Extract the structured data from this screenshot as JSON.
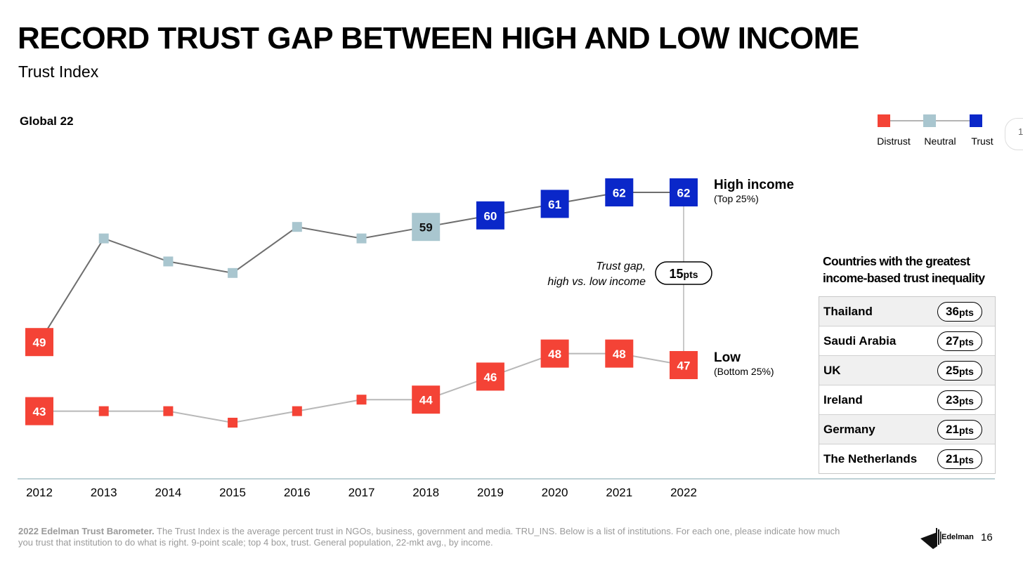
{
  "header": {
    "title": "RECORD TRUST GAP BETWEEN HIGH AND LOW INCOME",
    "subtitle": "Trust Index",
    "region": "Global 22"
  },
  "legend": {
    "items": [
      {
        "label": "Distrust",
        "color": "#f44336"
      },
      {
        "label": "Neutral",
        "color": "#a9c6cf"
      },
      {
        "label": "Trust",
        "color": "#0a27c9"
      }
    ]
  },
  "chart_data": {
    "type": "line",
    "x": [
      "2012",
      "2013",
      "2014",
      "2015",
      "2016",
      "2017",
      "2018",
      "2019",
      "2020",
      "2021",
      "2022"
    ],
    "series": [
      {
        "name": "High income",
        "subtitle": "(Top 25%)",
        "values": [
          49,
          58,
          56,
          55,
          59,
          58,
          59,
          60,
          61,
          62,
          62
        ],
        "labeled": [
          true,
          false,
          false,
          false,
          false,
          false,
          true,
          true,
          true,
          true,
          true
        ],
        "line_color": "#6e6e6e"
      },
      {
        "name": "Low",
        "subtitle": "(Bottom 25%)",
        "values": [
          43,
          43,
          43,
          42,
          43,
          44,
          44,
          46,
          48,
          48,
          47
        ],
        "labeled": [
          true,
          false,
          false,
          false,
          false,
          false,
          true,
          true,
          true,
          true,
          true
        ],
        "line_color": "#b8b8b8"
      }
    ],
    "category_colors": {
      "distrust": "#f44336",
      "neutral": "#a9c6cf",
      "trust": "#0a27c9"
    },
    "thresholds": {
      "distrust_max": 49,
      "trust_min": 60
    },
    "gap": {
      "label_line1": "Trust gap,",
      "label_line2": "high vs. low income",
      "value": "15",
      "unit": "pts"
    }
  },
  "countries": {
    "title_line1": "Countries with the greatest",
    "title_line2": "income-based trust inequality",
    "unit": "pts",
    "rows": [
      {
        "name": "Thailand",
        "value": "36"
      },
      {
        "name": "Saudi Arabia",
        "value": "27"
      },
      {
        "name": "UK",
        "value": "25"
      },
      {
        "name": "Ireland",
        "value": "23"
      },
      {
        "name": "Germany",
        "value": "21"
      },
      {
        "name": "The Netherlands",
        "value": "21"
      }
    ]
  },
  "footer": {
    "source_bold": "2022 Edelman Trust Barometer.",
    "source_text": " The Trust Index is the average percent trust in NGOs, business, government and media. TRU_INS. Below is a list of institutions. For each one, please indicate how much you trust that institution to do what is right. 9-point scale; top 4 box, trust. General population, 22-mkt avg., by income.",
    "brand": "Edelman",
    "page": "16",
    "side_tab": "1"
  }
}
